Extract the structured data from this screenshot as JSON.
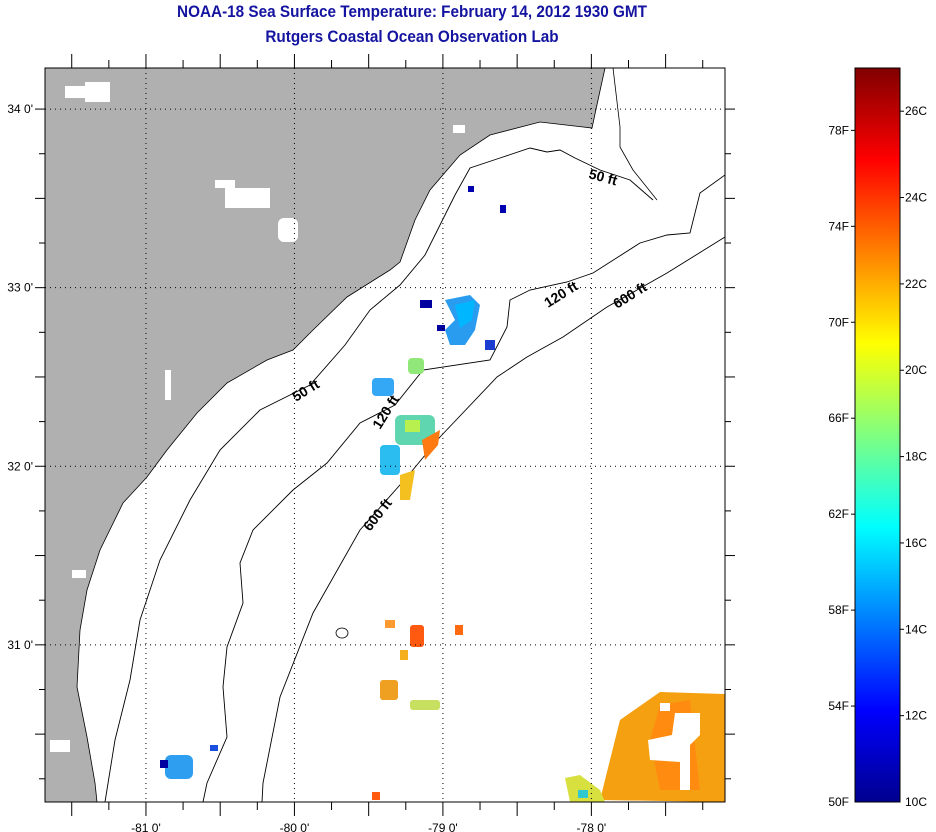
{
  "header": {
    "title": "NOAA-18 Sea Surface Temperature:  February 14, 2012 1930 GMT",
    "subtitle": "Rutgers Coastal Ocean Observation Lab"
  },
  "map": {
    "lon_labels": [
      {
        "value": -81,
        "label": "-81 0'"
      },
      {
        "value": -80,
        "label": "-80 0'"
      },
      {
        "value": -79,
        "label": "-79 0'"
      },
      {
        "value": -78,
        "label": "-78 0'"
      }
    ],
    "lat_labels": [
      {
        "value": 34,
        "label": "34 0'"
      },
      {
        "value": 33,
        "label": "33 0'"
      },
      {
        "value": 32,
        "label": "32 0'"
      },
      {
        "value": 31,
        "label": "31 0'"
      }
    ],
    "lon_range": [
      -81.68,
      -77.1
    ],
    "lat_range": [
      30.12,
      34.23
    ],
    "isobath_labels": {
      "a50_upper": "50 ft",
      "a50_lower": "50 ft",
      "a120_upper": "120 ft",
      "a120_lower": "120 ft",
      "a600_upper": "600 ft",
      "a600_lower": "600 ft"
    },
    "colors": {
      "land": "#b0b0b0",
      "ocean": "#ffffff",
      "grid": "#000000"
    }
  },
  "colorbar": {
    "range_c": [
      10,
      27
    ],
    "fahrenheit_labels": [
      {
        "value": 78,
        "label": "78F"
      },
      {
        "value": 74,
        "label": "74F"
      },
      {
        "value": 70,
        "label": "70F"
      },
      {
        "value": 66,
        "label": "66F"
      },
      {
        "value": 62,
        "label": "62F"
      },
      {
        "value": 58,
        "label": "58F"
      },
      {
        "value": 54,
        "label": "54F"
      },
      {
        "value": 50,
        "label": "50F"
      }
    ],
    "celsius_labels": [
      {
        "value": 26,
        "label": "26C"
      },
      {
        "value": 24,
        "label": "24C"
      },
      {
        "value": 22,
        "label": "22C"
      },
      {
        "value": 20,
        "label": "20C"
      },
      {
        "value": 18,
        "label": "18C"
      },
      {
        "value": 16,
        "label": "16C"
      },
      {
        "value": 14,
        "label": "14C"
      },
      {
        "value": 12,
        "label": "12C"
      },
      {
        "value": 10,
        "label": "10C"
      }
    ],
    "stops": [
      "#00008f",
      "#0000ff",
      "#0080ff",
      "#00ffff",
      "#80ff80",
      "#ffff00",
      "#ff8000",
      "#ff0000",
      "#800000"
    ]
  }
}
